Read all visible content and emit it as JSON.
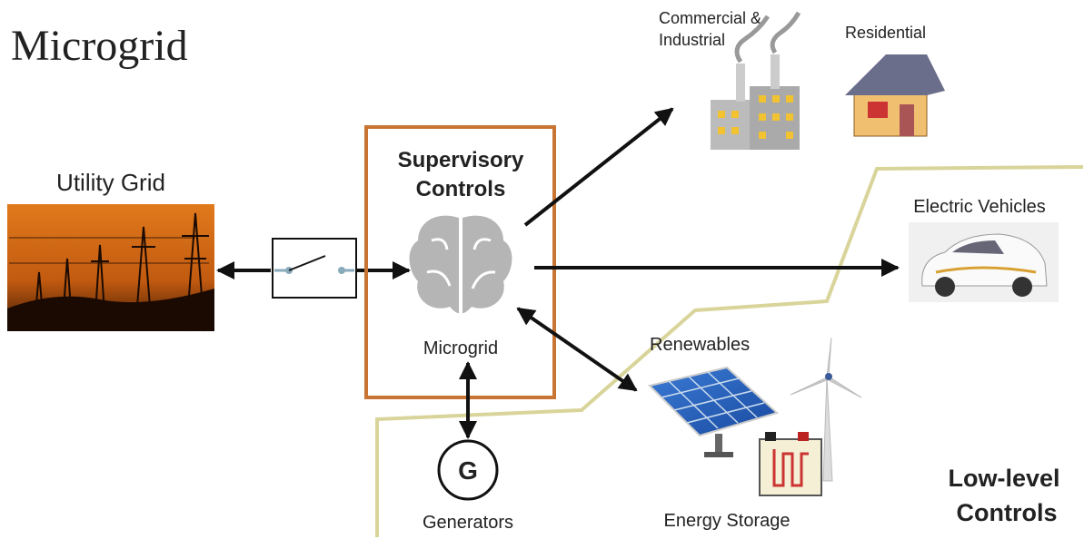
{
  "title": "Microgrid",
  "nodes": [
    {
      "label": [
        "Utility Grid"
      ]
    },
    {
      "label": [
        "Supervisory",
        "Controls"
      ]
    },
    {
      "label": [
        "Microgrid"
      ]
    },
    {
      "label": [
        "Commercial &",
        "Industrial"
      ]
    },
    {
      "label": [
        "Residential"
      ]
    },
    {
      "label": [
        "Electric Vehicles"
      ]
    },
    {
      "label": [
        "Renewables"
      ]
    },
    {
      "label": [
        "G"
      ]
    },
    {
      "label": [
        "Generators"
      ]
    },
    {
      "label": [
        "Energy Storage"
      ]
    },
    {
      "label": [
        "Low-level",
        "Controls"
      ]
    }
  ]
}
